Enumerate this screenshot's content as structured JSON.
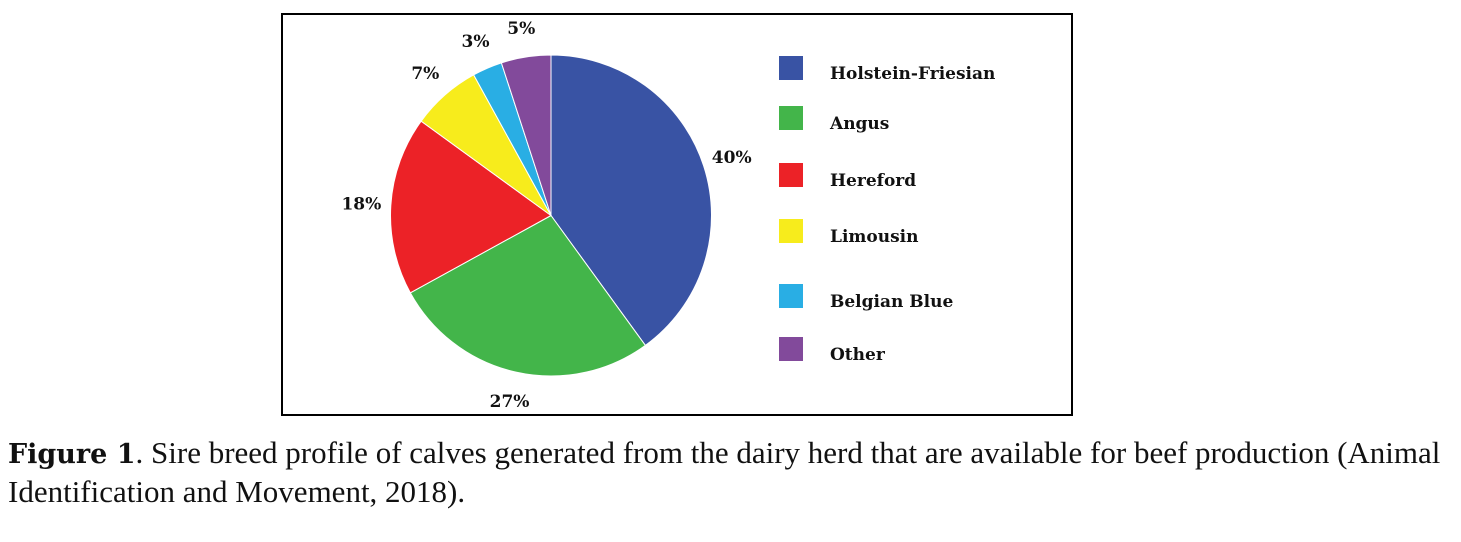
{
  "chart_data": {
    "type": "pie",
    "title": "",
    "categories": [
      "Holstein-Friesian",
      "Angus",
      "Hereford",
      "Limousin",
      "Belgian Blue",
      "Other"
    ],
    "values": [
      40,
      27,
      18,
      7,
      3,
      5
    ],
    "labels": [
      "40%",
      "27%",
      "18%",
      "7%",
      "3%",
      "5%"
    ],
    "colors": [
      "#3953a4",
      "#43b54a",
      "#ec2227",
      "#f7ec1c",
      "#29aee4",
      "#824a9b"
    ],
    "start": "top",
    "direction": "clockwise",
    "legend_position": "right"
  },
  "caption": {
    "label": "Figure 1",
    "text": ". Sire breed profile of calves generated from the dairy herd that are available for beef production (Animal Identification and Movement, 2018)."
  }
}
